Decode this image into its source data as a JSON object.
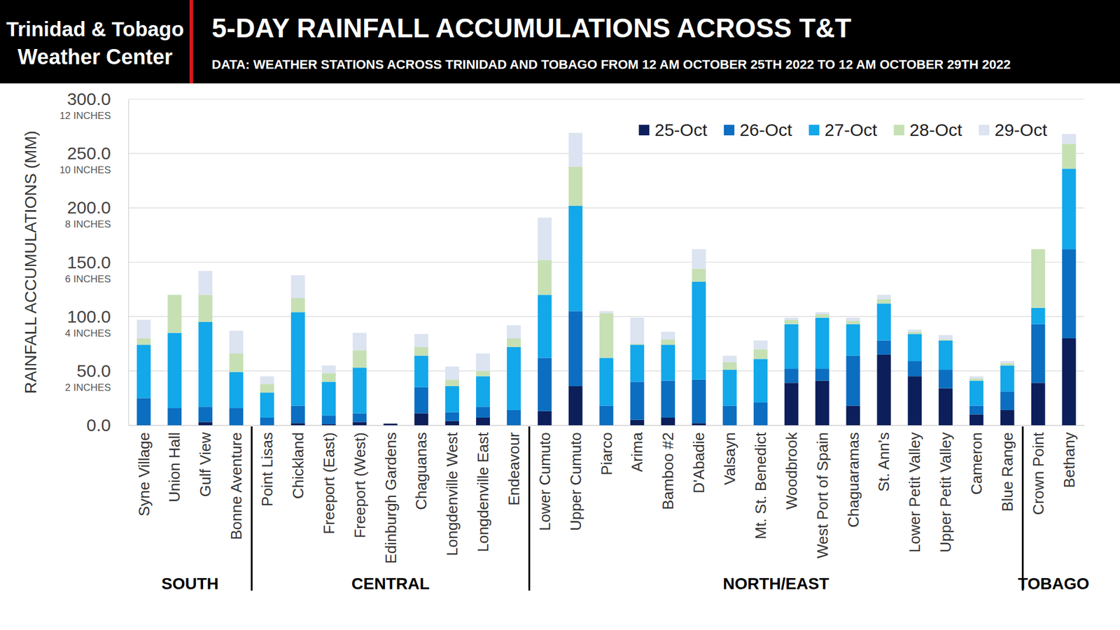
{
  "chart_data": {
    "type": "bar",
    "stacked": true,
    "grid": true,
    "legend": "top-right",
    "brand": [
      "Trinidad & Tobago",
      "Weather Center"
    ],
    "title": "5-DAY RAINFALL ACCUMULATIONS ACROSS T&T",
    "subtitle": "DATA: WEATHER STATIONS ACROSS TRINIDAD AND TOBAGO FROM 12 AM OCTOBER 25TH 2022 TO 12 AM OCTOBER 29TH 2022",
    "y_label": "RAINFALL ACCUMULATIONS (MM)",
    "categories": [
      "Syne Village",
      "Union Hall",
      "Gulf View",
      "Bonne Aventure",
      "Point Lisas",
      "Chickland",
      "Freeport (East)",
      "Freeport (West)",
      "Edinburgh Gardens",
      "Chaguanas",
      "Longdenville West",
      "Longdenville East",
      "Endeavour",
      "Lower Cumuto",
      "Upper Cumuto",
      "Piarco",
      "Arima",
      "Bamboo #2",
      "D'Abadie",
      "Valsayn",
      "Mt. St. Benedict",
      "Woodbrook",
      "West Port of Spain",
      "Chaguaramas",
      "St. Ann's",
      "Lower Petit Valley",
      "Upper Petit Valley",
      "Cameron",
      "Blue Range",
      "Crown Point",
      "Bethany"
    ],
    "series": [
      {
        "name": "25-Oct",
        "color": "#0c1f5b",
        "values": [
          0,
          0,
          3,
          0,
          0,
          2,
          1,
          3,
          1.5,
          11,
          4,
          7,
          0,
          13,
          36,
          0,
          5,
          7,
          2,
          0,
          0,
          39,
          41,
          18,
          65,
          45,
          34,
          10,
          14,
          39,
          80
        ]
      },
      {
        "name": "26-Oct",
        "color": "#0b6ec0",
        "values": [
          25,
          16,
          14,
          16,
          7,
          16,
          8,
          8,
          0,
          24,
          8,
          10,
          14,
          49,
          69,
          18,
          35,
          34,
          40,
          18,
          21,
          13,
          11,
          46,
          13,
          14,
          17,
          8,
          17,
          54,
          82
        ]
      },
      {
        "name": "27-Oct",
        "color": "#12a8ea",
        "values": [
          49,
          69,
          78,
          33,
          23,
          86,
          31,
          42,
          0,
          29,
          24,
          28,
          58,
          58,
          97,
          44,
          34,
          33,
          90,
          33,
          40,
          41,
          47,
          29,
          34,
          25,
          27,
          23,
          24,
          15,
          74
        ]
      },
      {
        "name": "28-Oct",
        "color": "#c6e0b4",
        "values": [
          6,
          35,
          25,
          17,
          8,
          13,
          8,
          16,
          0,
          8,
          6,
          5,
          8,
          32,
          36,
          41,
          1,
          5,
          12,
          7,
          9,
          4,
          3,
          3,
          4,
          2,
          1,
          2,
          2,
          54,
          23
        ]
      },
      {
        "name": "29-Oct",
        "color": "#dce3f1",
        "values": [
          17,
          0,
          22,
          21,
          7,
          21,
          7,
          16,
          0,
          12,
          12,
          16,
          12,
          39,
          31,
          2,
          24,
          7,
          18,
          6,
          8,
          2,
          2,
          3,
          4,
          2,
          4,
          2,
          2,
          0,
          9
        ]
      }
    ],
    "ylim": [
      0,
      300
    ],
    "yticks": [
      {
        "value": 0,
        "label": "0.0"
      },
      {
        "value": 50,
        "label": "50.0"
      },
      {
        "value": 100,
        "label": "100.0"
      },
      {
        "value": 150,
        "label": "150.0"
      },
      {
        "value": 200,
        "label": "200.0"
      },
      {
        "value": 250,
        "label": "250.0"
      },
      {
        "value": 300,
        "label": "300.0"
      }
    ],
    "annotations": [
      {
        "text": "2 INCHES",
        "y": 50
      },
      {
        "text": "4 INCHES",
        "y": 100
      },
      {
        "text": "6 INCHES",
        "y": 150
      },
      {
        "text": "8 INCHES",
        "y": 200
      },
      {
        "text": "10 INCHES",
        "y": 250
      },
      {
        "text": "12 INCHES",
        "y": 300
      }
    ],
    "groups": [
      {
        "label": "SOUTH",
        "start": 0,
        "end": 3
      },
      {
        "label": "CENTRAL",
        "start": 4,
        "end": 12
      },
      {
        "label": "NORTH/EAST",
        "start": 13,
        "end": 28
      },
      {
        "label": "TOBAGO",
        "start": 29,
        "end": 30
      }
    ]
  }
}
